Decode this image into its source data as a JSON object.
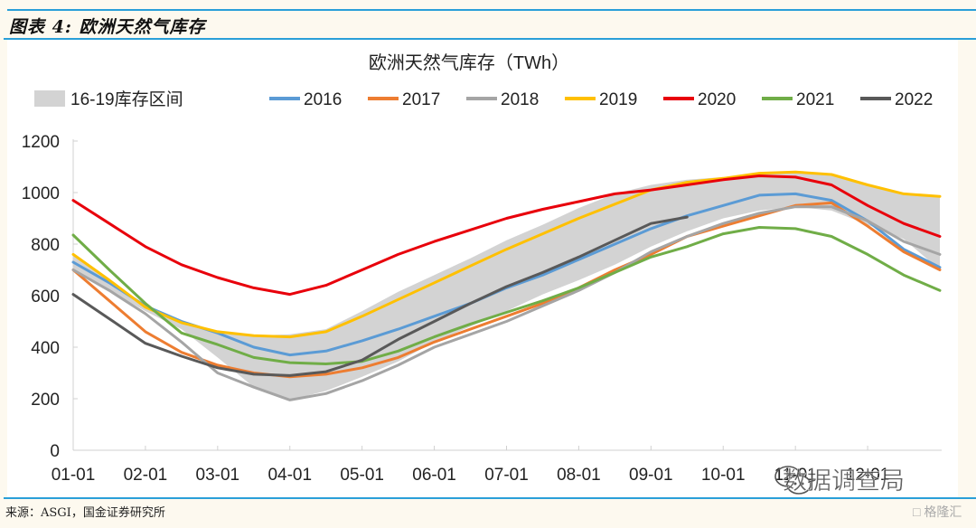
{
  "figure_label": "图表 4:  欧洲天然气库存",
  "source_text": "来源：ASGI，国金证券研究所",
  "watermark_text": "数据调查局",
  "watermark_logo_text": "格隆汇",
  "chart_data": {
    "type": "line",
    "title": "欧洲天然气库存（TWh）",
    "xlabel": "",
    "ylabel": "",
    "ylim": [
      0,
      1200
    ],
    "yticks": [
      0,
      200,
      400,
      600,
      800,
      1000,
      1200
    ],
    "grid": false,
    "legend_position": "top",
    "x_ticks": [
      "01-01",
      "02-01",
      "03-01",
      "04-01",
      "05-01",
      "06-01",
      "07-01",
      "08-01",
      "09-01",
      "10-01",
      "11-01",
      "12-01"
    ],
    "x_unit": "month (fractional: 1 = 01-01, 13 = 12-31)",
    "x": [
      1,
      1.5,
      2,
      2.5,
      3,
      3.5,
      4,
      4.5,
      5,
      5.5,
      6,
      6.5,
      7,
      7.5,
      8,
      8.5,
      9,
      9.5,
      10,
      10.5,
      11,
      11.5,
      12,
      12.5,
      13
    ],
    "band": {
      "name": "16-19库存区间",
      "color": "#d3d3d3",
      "low": [
        700,
        620,
        540,
        470,
        360,
        245,
        195,
        230,
        285,
        345,
        420,
        480,
        540,
        605,
        660,
        720,
        790,
        850,
        900,
        930,
        945,
        930,
        875,
        820,
        700
      ],
      "high": [
        760,
        660,
        555,
        495,
        460,
        445,
        450,
        470,
        540,
        615,
        680,
        745,
        815,
        875,
        940,
        995,
        1030,
        1050,
        1060,
        1075,
        1080,
        1070,
        1030,
        1000,
        985
      ]
    },
    "series": [
      {
        "name": "2016",
        "color": "#5b9bd5",
        "values": [
          730,
          650,
          560,
          500,
          455,
          400,
          370,
          385,
          425,
          470,
          520,
          570,
          630,
          680,
          740,
          800,
          860,
          910,
          950,
          990,
          995,
          970,
          890,
          780,
          710
        ]
      },
      {
        "name": "2017",
        "color": "#ed7d31",
        "values": [
          700,
          580,
          460,
          380,
          330,
          300,
          285,
          295,
          320,
          360,
          420,
          470,
          520,
          570,
          630,
          700,
          760,
          830,
          870,
          910,
          950,
          960,
          870,
          770,
          700
        ]
      },
      {
        "name": "2018",
        "color": "#a5a5a5",
        "values": [
          700,
          620,
          530,
          420,
          300,
          245,
          195,
          220,
          270,
          330,
          400,
          450,
          500,
          560,
          620,
          690,
          770,
          830,
          880,
          920,
          945,
          945,
          890,
          810,
          760
        ]
      },
      {
        "name": "2019",
        "color": "#ffc000",
        "values": [
          760,
          660,
          555,
          495,
          460,
          445,
          440,
          460,
          520,
          585,
          650,
          715,
          780,
          840,
          900,
          955,
          1010,
          1040,
          1055,
          1075,
          1080,
          1070,
          1030,
          995,
          985
        ]
      },
      {
        "name": "2020",
        "color": "#e8000b",
        "values": [
          970,
          880,
          790,
          720,
          670,
          630,
          605,
          640,
          700,
          760,
          810,
          855,
          900,
          935,
          965,
          995,
          1010,
          1030,
          1050,
          1065,
          1060,
          1030,
          950,
          880,
          830
        ]
      },
      {
        "name": "2021",
        "color": "#70ad47",
        "values": [
          835,
          700,
          570,
          455,
          410,
          360,
          340,
          335,
          345,
          385,
          440,
          490,
          535,
          580,
          630,
          690,
          750,
          790,
          840,
          865,
          860,
          830,
          760,
          680,
          620
        ]
      },
      {
        "name": "2022",
        "color": "#595959",
        "values": [
          605,
          510,
          415,
          365,
          320,
          295,
          290,
          305,
          350,
          430,
          500,
          570,
          635,
          690,
          750,
          815,
          880,
          905,
          null,
          null,
          null,
          null,
          null,
          null,
          null
        ]
      }
    ]
  }
}
